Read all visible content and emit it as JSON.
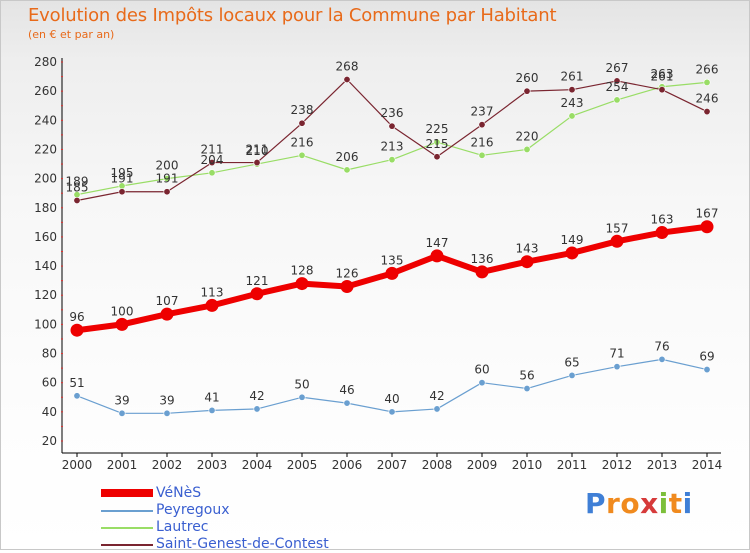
{
  "title": "Evolution des Impôts locaux pour la Commune par Habitant",
  "subtitle": "(en € et par an)",
  "logo": "Proxiti",
  "colors": {
    "title": "#e86a1a",
    "legend_text": "#3a5fd0",
    "venes": "#ee0000",
    "peyregoux": "#6a9fd0",
    "lautrec": "#99dd66",
    "saint_genest": "#7a2530",
    "logo": [
      "#3f7fd6",
      "#f08a1e",
      "#f08a1e",
      "#d63a3a",
      "#7cbf3a",
      "#f08a1e",
      "#3f7fd6"
    ]
  },
  "chart_data": {
    "type": "line",
    "x": [
      "2000",
      "2001",
      "2002",
      "2003",
      "2004",
      "2005",
      "2006",
      "2007",
      "2008",
      "2009",
      "2010",
      "2011",
      "2012",
      "2013",
      "2014"
    ],
    "ylim": [
      20,
      280
    ],
    "yticks": [
      20,
      40,
      60,
      80,
      100,
      120,
      140,
      160,
      180,
      200,
      220,
      240,
      260,
      280
    ],
    "grid": false,
    "legend_position": "bottom-left",
    "series": [
      {
        "name": "VéNèS",
        "color": "#ee0000",
        "values": [
          96,
          100,
          107,
          113,
          121,
          128,
          126,
          135,
          147,
          136,
          143,
          149,
          157,
          163,
          167
        ]
      },
      {
        "name": "Peyregoux",
        "color": "#6a9fd0",
        "values": [
          51,
          39,
          39,
          41,
          42,
          50,
          46,
          40,
          42,
          60,
          56,
          65,
          71,
          76,
          69
        ]
      },
      {
        "name": "Lautrec",
        "color": "#99dd66",
        "values": [
          189,
          195,
          200,
          204,
          210,
          216,
          206,
          213,
          225,
          216,
          220,
          243,
          254,
          263,
          266
        ]
      },
      {
        "name": "Saint-Genest-de-Contest",
        "color": "#7a2530",
        "values": [
          185,
          191,
          191,
          211,
          211,
          238,
          268,
          236,
          215,
          237,
          260,
          261,
          267,
          261,
          246
        ]
      }
    ]
  }
}
